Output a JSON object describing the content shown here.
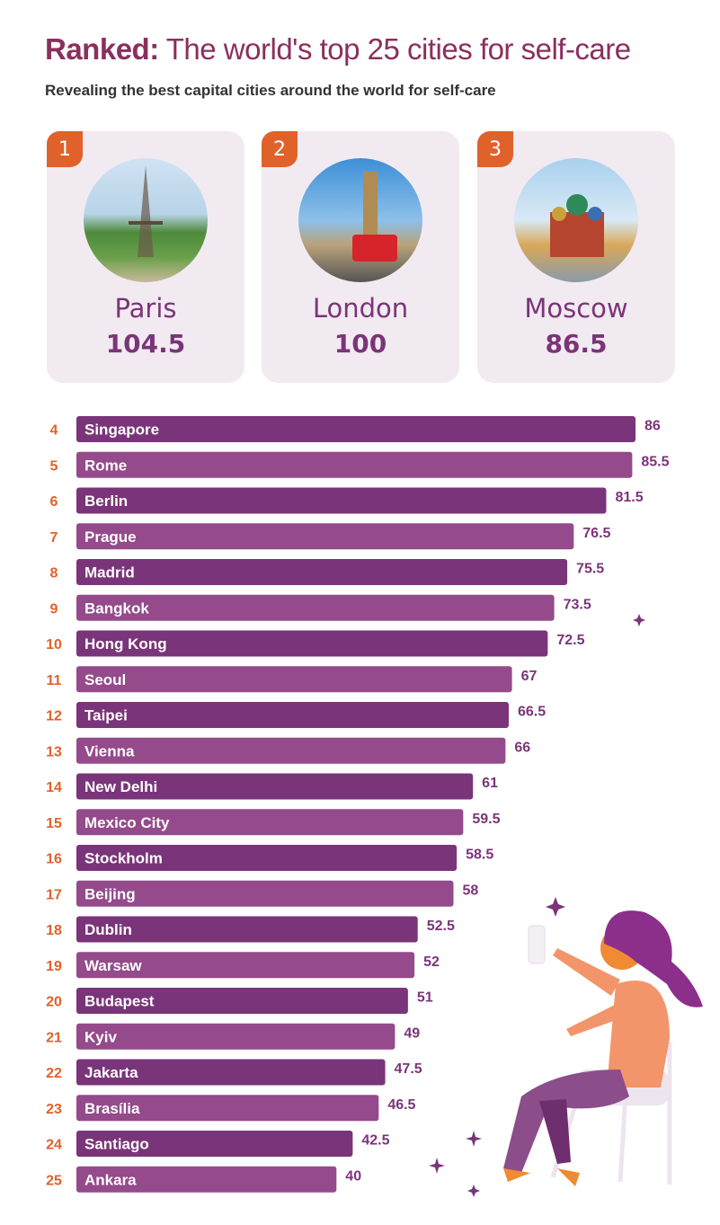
{
  "header": {
    "title_bold": "Ranked:",
    "title_rest": " The world's top 25 cities for self-care",
    "subtitle": "Revealing the best capital cities around the world for self-care"
  },
  "podium": [
    {
      "rank": "1",
      "city": "Paris",
      "score": "104.5"
    },
    {
      "rank": "2",
      "city": "London",
      "score": "100"
    },
    {
      "rank": "3",
      "city": "Moscow",
      "score": "86.5"
    }
  ],
  "colors": {
    "bar_dark": "#7a3479",
    "bar_light": "#944a8b",
    "rank": "#e0622a",
    "title": "#8b2f5e"
  },
  "chart_data": {
    "type": "bar",
    "orientation": "horizontal",
    "title": "Ranked: The world's top 25 cities for self-care",
    "ranks": [
      4,
      5,
      6,
      7,
      8,
      9,
      10,
      11,
      12,
      13,
      14,
      15,
      16,
      17,
      18,
      19,
      20,
      21,
      22,
      23,
      24,
      25
    ],
    "categories": [
      "Singapore",
      "Rome",
      "Berlin",
      "Prague",
      "Madrid",
      "Bangkok",
      "Hong Kong",
      "Seoul",
      "Taipei",
      "Vienna",
      "New Delhi",
      "Mexico City",
      "Stockholm",
      "Beijing",
      "Dublin",
      "Warsaw",
      "Budapest",
      "Kyiv",
      "Jakarta",
      "Brasília",
      "Santiago",
      "Ankara"
    ],
    "values": [
      86,
      85.5,
      81.5,
      76.5,
      75.5,
      73.5,
      72.5,
      67,
      66.5,
      66,
      61,
      59.5,
      58.5,
      58,
      52.5,
      52,
      51,
      49,
      47.5,
      46.5,
      42.5,
      40
    ],
    "xlim": [
      0,
      86
    ]
  }
}
